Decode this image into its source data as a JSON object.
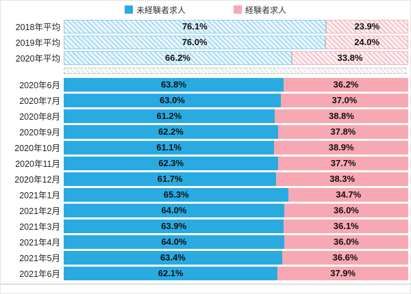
{
  "legend": {
    "items": [
      {
        "label": "未経験者求人",
        "color": "#29ABE2"
      },
      {
        "label": "経験者求人",
        "color": "#F8A8B3"
      }
    ]
  },
  "chart_data": {
    "type": "bar",
    "orientation": "horizontal_stacked",
    "unit": "percent",
    "value_format": "one_decimal_percent",
    "series": [
      "未経験者求人",
      "経験者求人"
    ],
    "colors": {
      "inexperienced": "#29ABE2",
      "experienced": "#F8A8B3"
    },
    "legend_position": "top",
    "xlim": [
      0,
      100
    ],
    "grid": false,
    "separator_after_row": 2,
    "rows": [
      {
        "label": "2018年平均",
        "values": [
          76.1,
          23.9
        ],
        "style": "average"
      },
      {
        "label": "2019年平均",
        "values": [
          76.0,
          24.0
        ],
        "style": "average"
      },
      {
        "label": "2020年平均",
        "values": [
          66.2,
          33.8
        ],
        "style": "average"
      },
      {
        "label": "2020年6月",
        "values": [
          63.8,
          36.2
        ],
        "style": "month"
      },
      {
        "label": "2020年7月",
        "values": [
          63.0,
          37.0
        ],
        "style": "month"
      },
      {
        "label": "2020年8月",
        "values": [
          61.2,
          38.8
        ],
        "style": "month"
      },
      {
        "label": "2020年9月",
        "values": [
          62.2,
          37.8
        ],
        "style": "month"
      },
      {
        "label": "2020年10月",
        "values": [
          61.1,
          38.9
        ],
        "style": "month"
      },
      {
        "label": "2020年11月",
        "values": [
          62.3,
          37.7
        ],
        "style": "month"
      },
      {
        "label": "2020年12月",
        "values": [
          61.7,
          38.3
        ],
        "style": "month"
      },
      {
        "label": "2021年1月",
        "values": [
          65.3,
          34.7
        ],
        "style": "month"
      },
      {
        "label": "2021年2月",
        "values": [
          64.0,
          36.0
        ],
        "style": "month"
      },
      {
        "label": "2021年3月",
        "values": [
          63.9,
          36.1
        ],
        "style": "month"
      },
      {
        "label": "2021年4月",
        "values": [
          64.0,
          36.0
        ],
        "style": "month"
      },
      {
        "label": "2021年5月",
        "values": [
          63.4,
          36.6
        ],
        "style": "month"
      },
      {
        "label": "2021年6月",
        "values": [
          62.1,
          37.9
        ],
        "style": "month"
      }
    ]
  }
}
